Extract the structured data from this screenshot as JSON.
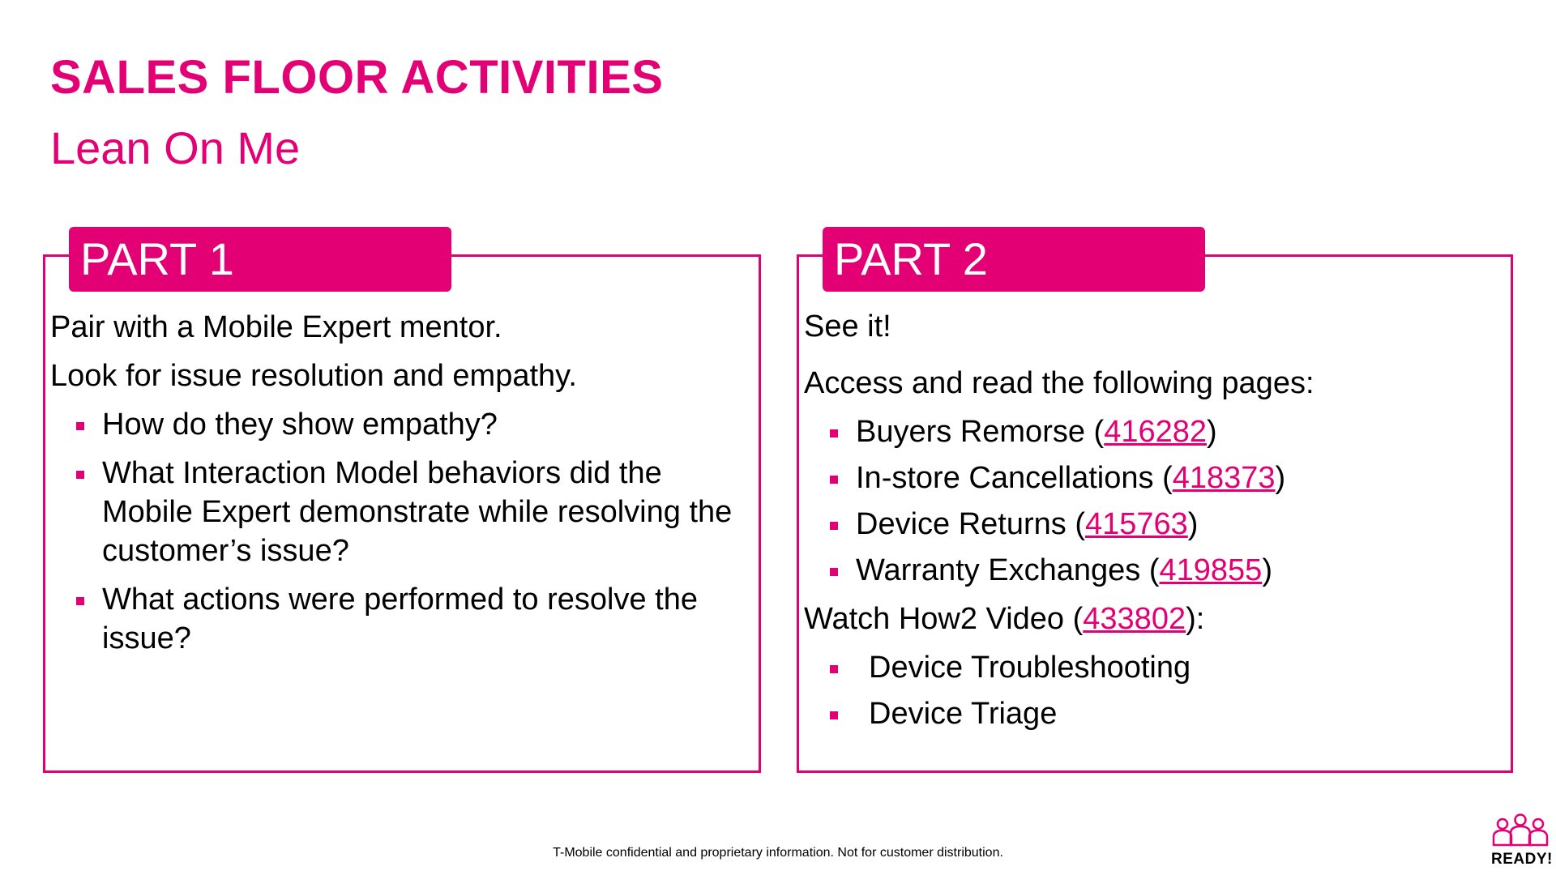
{
  "title": "SALES FLOOR ACTIVITIES",
  "subtitle": "Lean On Me",
  "part1": {
    "tab": "PART 1",
    "para1": "Pair with a Mobile Expert mentor.",
    "para2": "Look for issue resolution and empathy.",
    "bullets": [
      "How do they show empathy?",
      "What Interaction Model behaviors did the Mobile Expert demonstrate while resolving the customer’s issue?",
      "What actions were performed to resolve the issue?"
    ]
  },
  "part2": {
    "tab": "PART 2",
    "para1": "See it!",
    "para2": "Access and read the following pages:",
    "pages": [
      {
        "label": "Buyers Remorse",
        "id": "416282"
      },
      {
        "label": "In-store Cancellations",
        "id": "418373"
      },
      {
        "label": "Device Returns",
        "id": "415763"
      },
      {
        "label": "Warranty Exchanges",
        "id": "419855"
      }
    ],
    "video_prefix": "Watch How2 Video",
    "video_id": "433802",
    "video_bullets": [
      "Device Troubleshooting",
      "Device Triage"
    ]
  },
  "footer": "T-Mobile confidential and proprietary information. Not for customer distribution.",
  "logo_text": "READY!",
  "colors": {
    "accent": "#e20074"
  }
}
